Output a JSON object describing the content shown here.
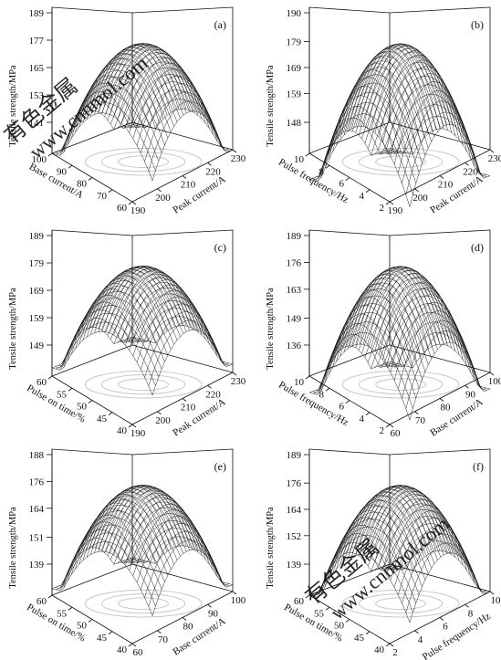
{
  "colors": {
    "ink": "#111111",
    "watermark": "#d9d9d9",
    "contour": "#c8c8c8"
  },
  "watermark": {
    "text": "www.cnnmol.com",
    "chars": "有色金属"
  },
  "chart_data": [
    {
      "type": "surface",
      "panel": "(a)",
      "zlabel": "Tensile strength/MPa",
      "zticks": [
        "141",
        "153",
        "165",
        "177",
        "189"
      ],
      "zlim": [
        141,
        189
      ],
      "xlabel": "Peak current/A",
      "xticks": [
        "190",
        "200",
        "210",
        "220",
        "230"
      ],
      "xlim": [
        190,
        230
      ],
      "ylabel": "Base current/A",
      "yticks": [
        "60",
        "70",
        "80",
        "90",
        "100"
      ],
      "ylim": [
        60,
        100
      ],
      "surface_peak": 189,
      "surface_min": 141
    },
    {
      "type": "surface",
      "panel": "(b)",
      "zlabel": "Tensile strength/MPa",
      "zticks": [
        "148",
        "159",
        "169",
        "179",
        "190"
      ],
      "zlim": [
        148,
        190
      ],
      "xlabel": "Peak current/A",
      "xticks": [
        "190",
        "200",
        "210",
        "220",
        "230"
      ],
      "xlim": [
        190,
        230
      ],
      "ylabel": "Pulse frequency/Hz",
      "yticks": [
        "2",
        "4",
        "6",
        "8",
        "10"
      ],
      "ylim": [
        2,
        10
      ],
      "surface_peak": 190,
      "surface_min": 138
    },
    {
      "type": "surface",
      "panel": "(c)",
      "zlabel": "Tensile strength/MPa",
      "zticks": [
        "149",
        "159",
        "169",
        "179",
        "189"
      ],
      "zlim": [
        149,
        189
      ],
      "xlabel": "Peak current/A",
      "xticks": [
        "190",
        "200",
        "210",
        "220",
        "230"
      ],
      "xlim": [
        190,
        230
      ],
      "ylabel": "Pulse on time/%",
      "yticks": [
        "40",
        "45",
        "50",
        "55",
        "60"
      ],
      "ylim": [
        40,
        60
      ],
      "surface_peak": 189,
      "surface_min": 152
    },
    {
      "type": "surface",
      "panel": "(d)",
      "zlabel": "Tensile strength/MPa",
      "zticks": [
        "136",
        "149",
        "163",
        "176",
        "189"
      ],
      "zlim": [
        136,
        189
      ],
      "xlabel": "Base current/A",
      "xticks": [
        "60",
        "70",
        "80",
        "90",
        "100"
      ],
      "xlim": [
        60,
        100
      ],
      "ylabel": "Pulse frequency/Hz",
      "yticks": [
        "2",
        "4",
        "6",
        "8",
        "10"
      ],
      "ylim": [
        2,
        10
      ],
      "surface_peak": 189,
      "surface_min": 128
    },
    {
      "type": "surface",
      "panel": "(e)",
      "zlabel": "Tensile strength/MPa",
      "zticks": [
        "139",
        "151",
        "164",
        "176",
        "188"
      ],
      "zlim": [
        139,
        188
      ],
      "xlabel": "Base current/A",
      "xticks": [
        "60",
        "70",
        "80",
        "90",
        "100"
      ],
      "xlim": [
        60,
        100
      ],
      "ylabel": "Pulse on time/%",
      "yticks": [
        "40",
        "45",
        "50",
        "55",
        "60"
      ],
      "ylim": [
        40,
        60
      ],
      "surface_peak": 188,
      "surface_min": 142
    },
    {
      "type": "surface",
      "panel": "(f)",
      "zlabel": "Tensile strength/MPa",
      "zticks": [
        "139",
        "152",
        "164",
        "176",
        "189"
      ],
      "zlim": [
        139,
        189
      ],
      "xlabel": "Pulse frequency/Hz",
      "xticks": [
        "2",
        "4",
        "6",
        "8",
        "10"
      ],
      "xlim": [
        2,
        10
      ],
      "ylabel": "Pulse on time/%",
      "yticks": [
        "40",
        "45",
        "50",
        "55",
        "60"
      ],
      "ylim": [
        40,
        60
      ],
      "surface_peak": 189,
      "surface_min": 139
    }
  ]
}
